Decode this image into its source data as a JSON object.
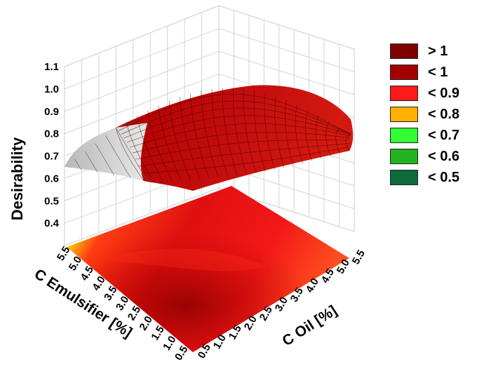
{
  "chart_data": {
    "type": "surface3d",
    "title": "",
    "zlabel": "Desirability",
    "xlabel": "C Emulsifier [%]",
    "ylabel": "C Oil [%]",
    "zticks": [
      "0.4",
      "0.5",
      "0.6",
      "0.7",
      "0.8",
      "0.9",
      "1.0",
      "1.1"
    ],
    "xticks": [
      "0.5",
      "1.0",
      "1.5",
      "2.0",
      "2.5",
      "3.0",
      "3.5",
      "4.0",
      "4.5",
      "5.0",
      "5.5"
    ],
    "yticks": [
      "0.5",
      "1.0",
      "1.5",
      "2.0",
      "2.5",
      "3.0",
      "3.5",
      "4.0",
      "4.5",
      "5.0",
      "5.5"
    ],
    "xlim": [
      0.5,
      5.5
    ],
    "ylim": [
      0.5,
      5.5
    ],
    "zlim": [
      0.3,
      1.1
    ],
    "surface_samples": {
      "emulsifier": [
        0.5,
        3.0,
        5.5
      ],
      "oil": [
        0.5,
        3.0,
        5.5
      ],
      "desirability": [
        [
          0.72,
          0.8,
          0.77
        ],
        [
          0.91,
          0.99,
          0.95
        ],
        [
          0.7,
          0.78,
          0.75
        ]
      ]
    },
    "legend": {
      "placement": "right",
      "entries": [
        {
          "label": "> 1",
          "color": "#7f0000"
        },
        {
          "label": "< 1",
          "color": "#a40000"
        },
        {
          "label": "< 0.9",
          "color": "#ff1a1a"
        },
        {
          "label": "< 0.8",
          "color": "#ffb000"
        },
        {
          "label": "< 0.7",
          "color": "#33ff33"
        },
        {
          "label": "< 0.6",
          "color": "#22b41e"
        },
        {
          "label": "< 0.5",
          "color": "#0e6a3a"
        }
      ]
    }
  }
}
